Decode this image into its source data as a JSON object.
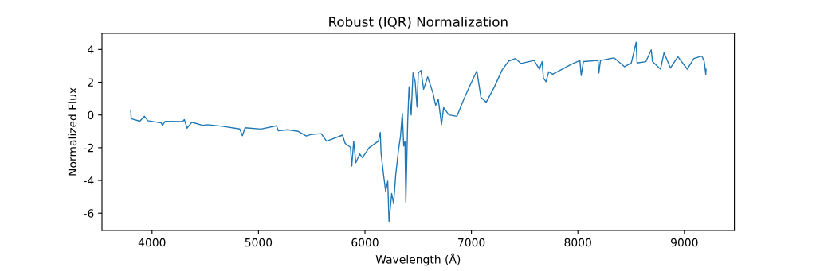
{
  "chart_data": {
    "type": "line",
    "title": "Robust (IQR) Normalization",
    "xlabel": "Wavelength (Å)",
    "ylabel": "Normalized Flux",
    "series": [
      {
        "color": "#1f77b4",
        "x": [
          3800,
          3805,
          3886,
          3929,
          3961,
          4086,
          4099,
          4124,
          4287,
          4304,
          4329,
          4374,
          4474,
          4524,
          4674,
          4824,
          4849,
          4874,
          5024,
          5169,
          5187,
          5274,
          5374,
          5449,
          5489,
          5589,
          5639,
          5789,
          5814,
          5864,
          5876,
          5894,
          5914,
          5951,
          5976,
          6039,
          6126,
          6144,
          6151,
          6176,
          6194,
          6214,
          6226,
          6251,
          6269,
          6289,
          6314,
          6334,
          6351,
          6364,
          6376,
          6384,
          6401,
          6414,
          6434,
          6451,
          6471,
          6489,
          6501,
          6526,
          6551,
          6589,
          6639,
          6664,
          6689,
          6719,
          6739,
          6789,
          6864,
          6926,
          6989,
          7051,
          7089,
          7139,
          7214,
          7289,
          7351,
          7414,
          7464,
          7589,
          7639,
          7664,
          7676,
          7701,
          7726,
          7764,
          7939,
          8019,
          8031,
          8052,
          8189,
          8197,
          8212,
          8339,
          8439,
          8502,
          8547,
          8556,
          8639,
          8689,
          8701,
          8776,
          8809,
          8869,
          8939,
          9027,
          9089,
          9164,
          9184,
          9189,
          9201,
          9204
        ],
        "values": [
          0.26,
          -0.23,
          -0.38,
          -0.08,
          -0.35,
          -0.48,
          -0.63,
          -0.39,
          -0.4,
          -0.28,
          -0.81,
          -0.44,
          -0.63,
          -0.59,
          -0.7,
          -0.85,
          -1.27,
          -0.78,
          -0.86,
          -0.66,
          -0.97,
          -0.9,
          -1.0,
          -1.28,
          -1.2,
          -1.14,
          -1.6,
          -1.23,
          -1.74,
          -1.97,
          -3.12,
          -1.6,
          -2.92,
          -2.38,
          -2.61,
          -2.0,
          -1.6,
          -1.07,
          -2.32,
          -3.73,
          -4.65,
          -4.04,
          -6.5,
          -4.8,
          -5.42,
          -3.65,
          -2.2,
          -1.28,
          0.1,
          -1.9,
          -1.6,
          -5.33,
          -0.48,
          1.72,
          0.0,
          2.57,
          2.05,
          0.48,
          2.57,
          2.72,
          1.57,
          2.33,
          1.34,
          0.6,
          0.95,
          -0.58,
          0.45,
          0.0,
          -0.08,
          0.92,
          1.84,
          2.69,
          1.08,
          0.78,
          1.69,
          2.76,
          3.3,
          3.45,
          3.15,
          3.33,
          2.8,
          3.26,
          2.26,
          2.03,
          2.64,
          2.49,
          3.1,
          3.33,
          2.41,
          3.26,
          3.33,
          2.56,
          3.33,
          3.49,
          2.95,
          3.18,
          4.44,
          3.18,
          3.26,
          3.98,
          3.26,
          2.8,
          3.8,
          2.87,
          3.56,
          2.8,
          3.45,
          3.6,
          3.33,
          3.15,
          2.49,
          2.8
        ]
      }
    ],
    "xlim": [
      3530,
      9470
    ],
    "ylim": [
      -7.05,
      4.99
    ],
    "xticks": [
      4000,
      5000,
      6000,
      7000,
      8000,
      9000
    ],
    "yticks": [
      -6,
      -4,
      -2,
      0,
      2,
      4
    ],
    "grid": false,
    "legend": false
  }
}
